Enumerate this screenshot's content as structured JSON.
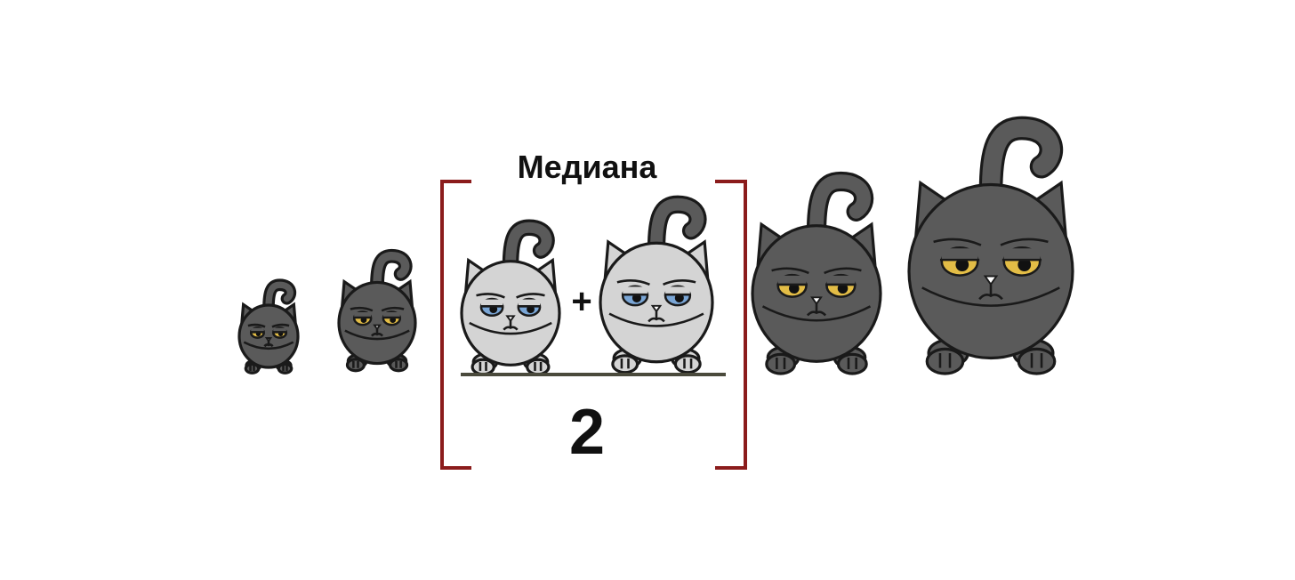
{
  "median": {
    "title": "Медиана",
    "operator": "+",
    "denominator": "2"
  },
  "colors": {
    "dark_cat": "#5a5a5a",
    "light_cat": "#d4d4d4",
    "outline": "#1a1a1a",
    "yellow_eye": "#e3bd46",
    "blue_eye": "#7aa6d6",
    "bracket": "#8b1c1c",
    "fraction_bar": "#4a4a3c"
  },
  "cats": [
    {
      "size_rank": 1,
      "shade": "dark",
      "eye": "yellow"
    },
    {
      "size_rank": 2,
      "shade": "dark",
      "eye": "yellow"
    },
    {
      "size_rank": 3,
      "shade": "light",
      "eye": "blue",
      "in_median": true
    },
    {
      "size_rank": 4,
      "shade": "light",
      "eye": "blue",
      "in_median": true
    },
    {
      "size_rank": 5,
      "shade": "dark",
      "eye": "yellow"
    },
    {
      "size_rank": 6,
      "shade": "dark",
      "eye": "yellow"
    }
  ]
}
